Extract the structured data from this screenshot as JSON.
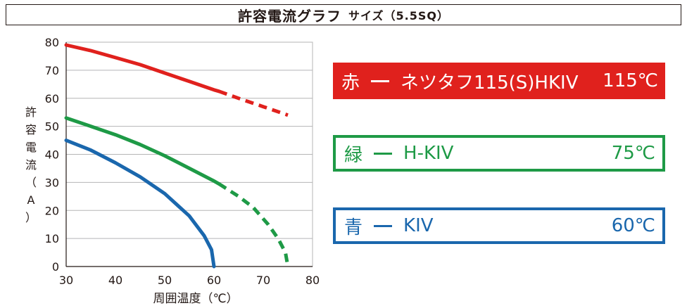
{
  "title": {
    "main": "許容電流グラフ",
    "sub": "サイズ（5.5SQ）"
  },
  "legend": [
    {
      "color_name": "赤",
      "product": "ネツタフ115(S)HKIV",
      "temp": "115℃",
      "color": "#e0211d"
    },
    {
      "color_name": "緑",
      "product": "H-KIV",
      "temp": "75℃",
      "color": "#1e9a46"
    },
    {
      "color_name": "青",
      "product": "KIV",
      "temp": "60℃",
      "color": "#1a67ad"
    }
  ],
  "chart_data": {
    "type": "line",
    "title": "許容電流グラフ サイズ（5.5SQ）",
    "xlabel": "周囲温度（℃）",
    "ylabel": "許容電流（A）",
    "xlim": [
      30,
      80
    ],
    "ylim": [
      0,
      80
    ],
    "xticks": [
      30,
      40,
      50,
      60,
      70,
      80
    ],
    "yticks": [
      0,
      10,
      20,
      30,
      40,
      50,
      60,
      70,
      80
    ],
    "grid": "horizontal",
    "series": [
      {
        "name": "赤 ー ネツタフ115(S)HKIV 115℃",
        "color": "#e0211d",
        "solid": [
          [
            30,
            79
          ],
          [
            35,
            77
          ],
          [
            40,
            74.5
          ],
          [
            45,
            72
          ],
          [
            50,
            69
          ],
          [
            55,
            66
          ],
          [
            60,
            63
          ],
          [
            61,
            62.5
          ]
        ],
        "dashed": [
          [
            61,
            62.5
          ],
          [
            65,
            60
          ],
          [
            70,
            57
          ],
          [
            75,
            54
          ]
        ]
      },
      {
        "name": "緑 ー H-KIV 75℃",
        "color": "#1e9a46",
        "solid": [
          [
            30,
            53
          ],
          [
            35,
            50
          ],
          [
            40,
            47
          ],
          [
            45,
            43.5
          ],
          [
            50,
            39.5
          ],
          [
            55,
            35
          ],
          [
            60,
            30.5
          ],
          [
            61,
            29.5
          ]
        ],
        "dashed": [
          [
            61,
            29.5
          ],
          [
            65,
            25
          ],
          [
            68,
            21
          ],
          [
            71,
            15
          ],
          [
            73,
            10
          ],
          [
            74.5,
            5
          ],
          [
            75,
            0
          ]
        ]
      },
      {
        "name": "青 ー KIV 60℃",
        "color": "#1a67ad",
        "solid": [
          [
            30,
            45
          ],
          [
            35,
            41.5
          ],
          [
            40,
            37
          ],
          [
            45,
            32
          ],
          [
            50,
            26
          ],
          [
            55,
            18
          ],
          [
            58,
            11
          ],
          [
            59.5,
            6
          ],
          [
            60,
            0
          ]
        ],
        "dashed": []
      }
    ]
  }
}
